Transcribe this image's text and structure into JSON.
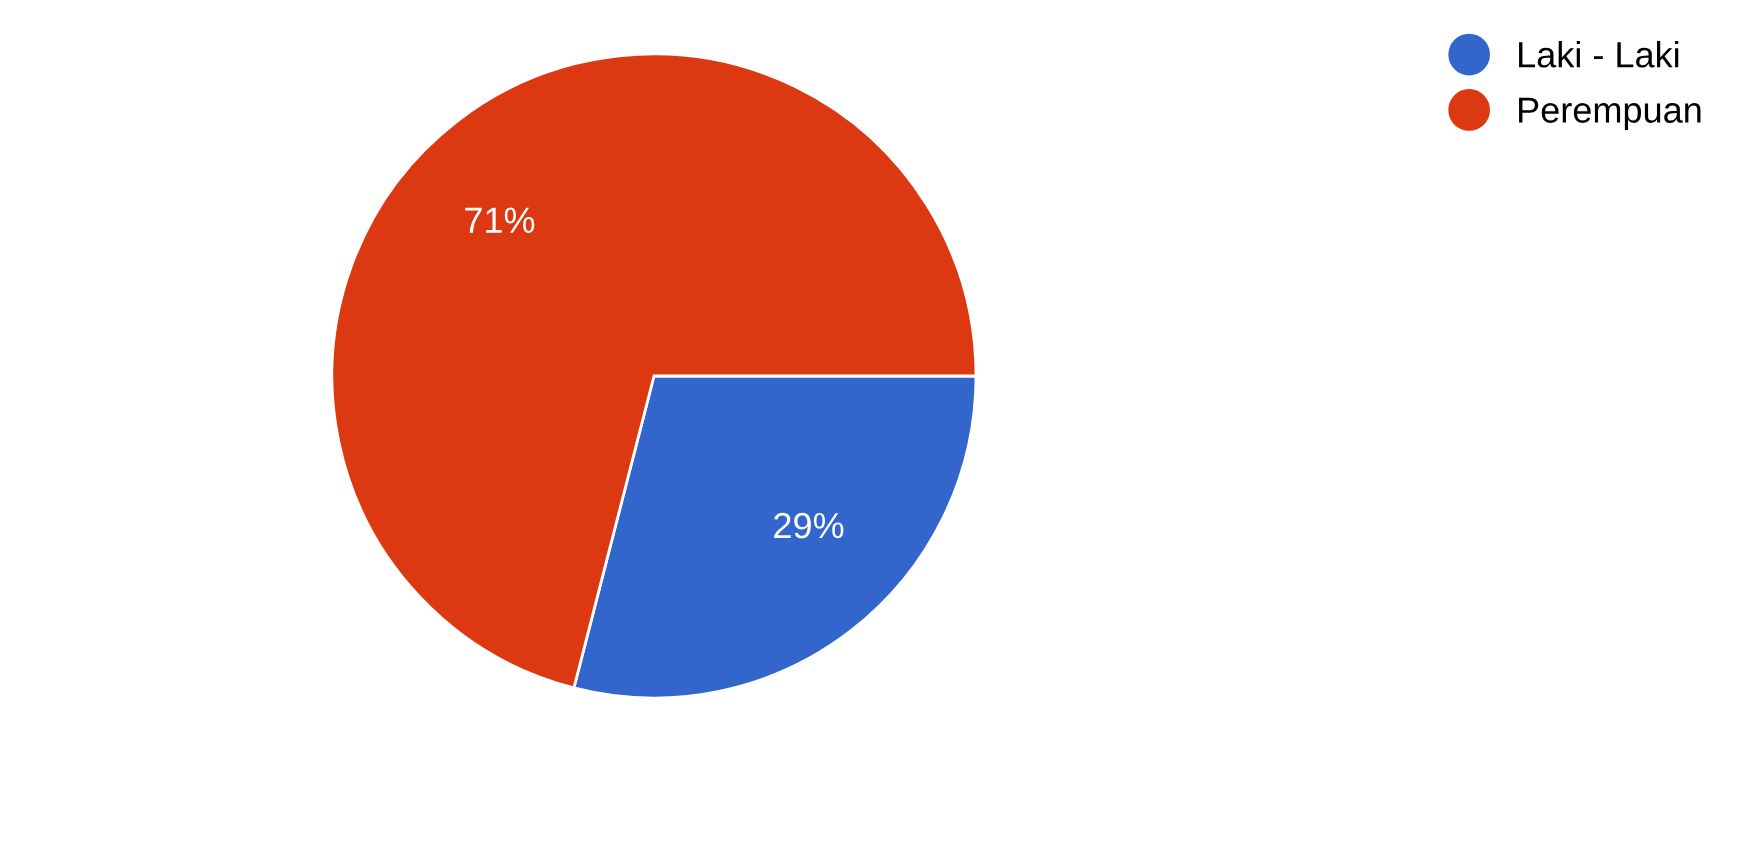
{
  "chart_data": {
    "type": "pie",
    "categories": [
      "Laki - Laki",
      "Perempuan"
    ],
    "values": [
      29,
      71
    ],
    "colors": [
      "#3366cc",
      "#dc3912"
    ],
    "value_labels": [
      "29%",
      "71%"
    ],
    "legend": "top right"
  }
}
